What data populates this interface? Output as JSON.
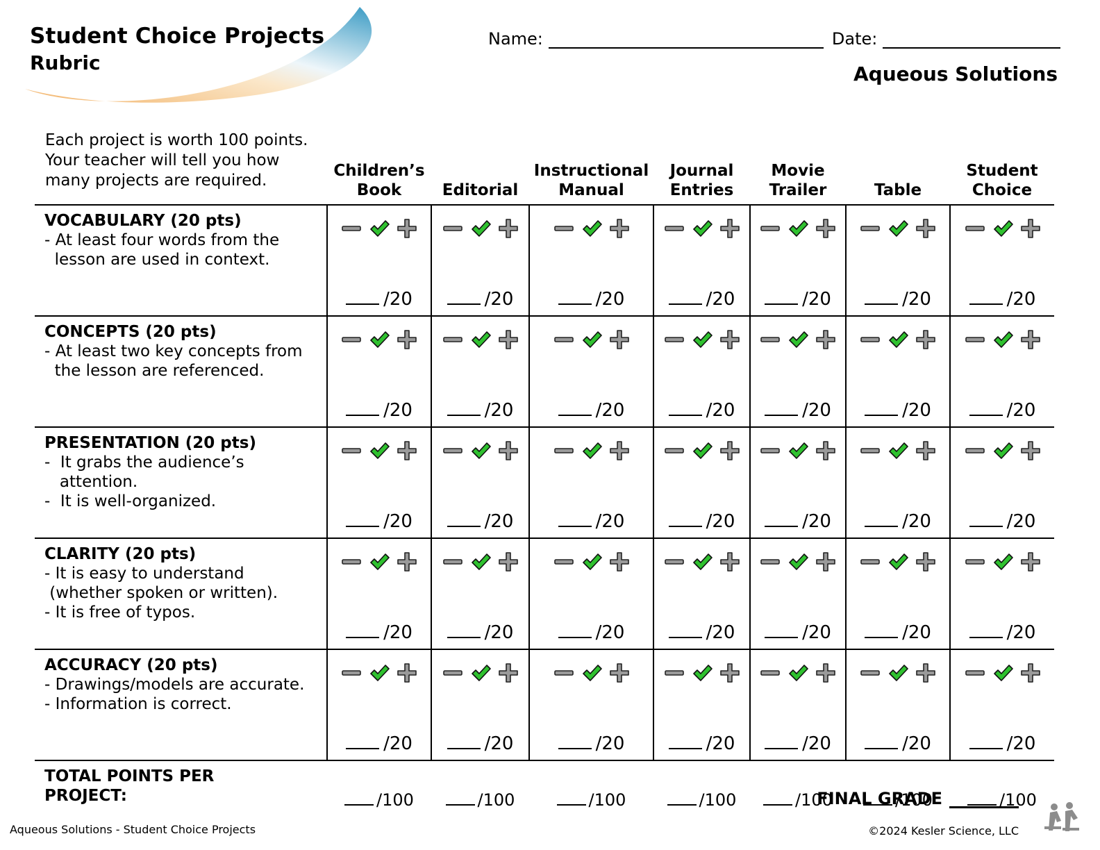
{
  "header": {
    "title": "Student Choice Projects",
    "subtitle": "Rubric",
    "name_label": "Name:",
    "date_label": "Date:",
    "topic": "Aqueous Solutions"
  },
  "intro": "Each project is worth 100 points. Your teacher will tell you how many projects are required.",
  "columns": [
    [
      "Children’s",
      "Book"
    ],
    [
      "",
      "Editorial"
    ],
    [
      "Instructional",
      "Manual"
    ],
    [
      "Journal",
      "Entries"
    ],
    [
      "Movie",
      "Trailer"
    ],
    [
      "",
      "Table"
    ],
    [
      "Student",
      "Choice"
    ]
  ],
  "criteria": [
    {
      "title": "VOCABULARY (20 pts)",
      "lines": [
        "- At least four words from the",
        "  lesson are used in context."
      ],
      "max": "/20"
    },
    {
      "title": "CONCEPTS (20 pts)",
      "lines": [
        "- At least two key concepts from",
        "  the lesson are referenced."
      ],
      "max": "/20"
    },
    {
      "title": "PRESENTATION (20 pts)",
      "lines": [
        "-  It grabs the audience’s",
        "   attention.",
        "-  It is well-organized."
      ],
      "max": "/20"
    },
    {
      "title": "CLARITY (20 pts)",
      "lines": [
        "- It is easy to understand",
        " (whether spoken or written).",
        "- It is free of typos."
      ],
      "max": "/20"
    },
    {
      "title": "ACCURACY (20 pts)",
      "lines": [
        "- Drawings/models are accurate.",
        "- Information is correct."
      ],
      "max": "/20"
    }
  ],
  "total": {
    "label_lines": [
      "TOTAL POINTS PER",
      "PROJECT:"
    ],
    "max": "/100"
  },
  "final_grade_label": "FINAL GRADE",
  "footer": {
    "left": "Aqueous Solutions - Student Choice Projects",
    "right": "©2024 Kesler Science, LLC"
  },
  "icons": [
    "minus-icon",
    "checkmark-icon",
    "plus-icon"
  ],
  "colors": {
    "check": "#2fc12f",
    "symbol_gray": "#9a9a9a",
    "swoosh_blue": "#3b9bc4",
    "swoosh_orange": "#f2b46b"
  }
}
